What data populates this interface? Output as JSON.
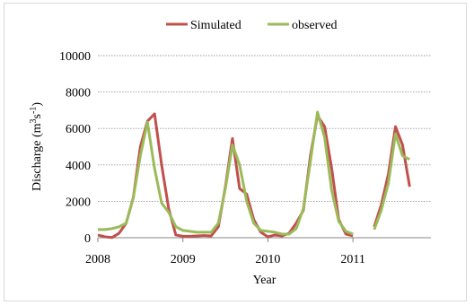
{
  "chart_data": {
    "type": "line",
    "xlabel": "Year",
    "ylabel_parts": [
      "Discharge (m",
      "3",
      "s",
      "-1",
      ")"
    ],
    "ylim": [
      0,
      10000
    ],
    "yticks": [
      0,
      2000,
      4000,
      6000,
      8000,
      10000
    ],
    "xlim": [
      2008,
      2011.917
    ],
    "xticks": [
      2008,
      2009,
      2010,
      2011
    ],
    "grid": true,
    "legend_position": "top-center",
    "series": [
      {
        "name": "Simulated",
        "color": "#c0504d",
        "points": [
          [
            2008.0,
            150
          ],
          [
            2008.083,
            50
          ],
          [
            2008.167,
            10
          ],
          [
            2008.25,
            250
          ],
          [
            2008.333,
            800
          ],
          [
            2008.417,
            2200
          ],
          [
            2008.5,
            5000
          ],
          [
            2008.583,
            6400
          ],
          [
            2008.667,
            6800
          ],
          [
            2008.75,
            4000
          ],
          [
            2008.833,
            1600
          ],
          [
            2008.917,
            150
          ],
          [
            2009.0,
            80
          ],
          [
            2009.083,
            80
          ],
          [
            2009.167,
            100
          ],
          [
            2009.25,
            120
          ],
          [
            2009.333,
            100
          ],
          [
            2009.417,
            600
          ],
          [
            2009.5,
            2800
          ],
          [
            2009.583,
            5450
          ],
          [
            2009.667,
            2700
          ],
          [
            2009.75,
            2400
          ],
          [
            2009.833,
            1000
          ],
          [
            2009.917,
            300
          ],
          [
            2010.0,
            50
          ],
          [
            2010.083,
            150
          ],
          [
            2010.167,
            100
          ],
          [
            2010.25,
            250
          ],
          [
            2010.333,
            800
          ],
          [
            2010.417,
            1500
          ],
          [
            2010.5,
            4500
          ],
          [
            2010.583,
            6700
          ],
          [
            2010.667,
            6100
          ],
          [
            2010.75,
            3800
          ],
          [
            2010.833,
            1000
          ],
          [
            2010.917,
            200
          ],
          [
            2011.0,
            100
          ],
          null,
          [
            2011.25,
            600
          ],
          [
            2011.333,
            1800
          ],
          [
            2011.417,
            3500
          ],
          [
            2011.5,
            6100
          ],
          [
            2011.583,
            5100
          ],
          [
            2011.667,
            2800
          ]
        ]
      },
      {
        "name": "observed",
        "color": "#9bbb59",
        "points": [
          [
            2008.0,
            450
          ],
          [
            2008.083,
            450
          ],
          [
            2008.167,
            500
          ],
          [
            2008.25,
            600
          ],
          [
            2008.333,
            800
          ],
          [
            2008.417,
            2200
          ],
          [
            2008.5,
            4500
          ],
          [
            2008.583,
            6350
          ],
          [
            2008.667,
            3800
          ],
          [
            2008.75,
            1900
          ],
          [
            2008.833,
            1400
          ],
          [
            2008.917,
            600
          ],
          [
            2009.0,
            400
          ],
          [
            2009.083,
            350
          ],
          [
            2009.167,
            300
          ],
          [
            2009.25,
            300
          ],
          [
            2009.333,
            300
          ],
          [
            2009.417,
            800
          ],
          [
            2009.5,
            2700
          ],
          [
            2009.583,
            5100
          ],
          [
            2009.667,
            4000
          ],
          [
            2009.75,
            2000
          ],
          [
            2009.833,
            800
          ],
          [
            2009.917,
            400
          ],
          [
            2010.0,
            350
          ],
          [
            2010.083,
            300
          ],
          [
            2010.167,
            200
          ],
          [
            2010.25,
            200
          ],
          [
            2010.333,
            500
          ],
          [
            2010.417,
            1600
          ],
          [
            2010.5,
            4200
          ],
          [
            2010.583,
            6900
          ],
          [
            2010.667,
            5500
          ],
          [
            2010.75,
            2600
          ],
          [
            2010.833,
            900
          ],
          [
            2010.917,
            350
          ],
          [
            2011.0,
            200
          ],
          null,
          [
            2011.25,
            450
          ],
          [
            2011.333,
            1500
          ],
          [
            2011.417,
            3000
          ],
          [
            2011.5,
            5700
          ],
          [
            2011.583,
            4500
          ],
          [
            2011.667,
            4300
          ]
        ]
      }
    ]
  }
}
